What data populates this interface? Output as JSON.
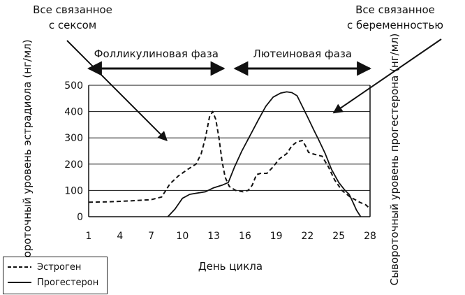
{
  "chart_data": {
    "type": "line",
    "xlabel": "День цикла",
    "ylabel_left": "Сывороточный уровень эстрадиола (нг/мл)",
    "ylabel_right": "Сывороточный уровень прогестерона (нг/мл)",
    "x_ticks": [
      1,
      4,
      7,
      10,
      13,
      16,
      19,
      22,
      25,
      28
    ],
    "y_ticks": [
      0,
      100,
      200,
      300,
      400,
      500
    ],
    "xlim": [
      1,
      28
    ],
    "ylim": [
      0,
      500
    ],
    "grid": "horizontal",
    "legend_position": "bottom-left",
    "phases": [
      {
        "label": "Фолликулиновая фаза",
        "x_start": 1,
        "x_end": 14.5
      },
      {
        "label": "Лютеиновая фаза",
        "x_start": 14.5,
        "x_end": 28
      }
    ],
    "annotations": [
      {
        "text_lines": [
          "Все связанное",
          "с сексом"
        ],
        "position": "top-left",
        "arrow_to": [
          8.5,
          290
        ]
      },
      {
        "text_lines": [
          "Все связанное",
          "с беременностью"
        ],
        "position": "top-right",
        "arrow_to": [
          24.5,
          395
        ]
      }
    ],
    "series": [
      {
        "name": "Эстроген",
        "style": "dashed",
        "points": [
          [
            1,
            55
          ],
          [
            3,
            57
          ],
          [
            5,
            60
          ],
          [
            7,
            65
          ],
          [
            8,
            75
          ],
          [
            8.8,
            125
          ],
          [
            9.6,
            155
          ],
          [
            10.5,
            180
          ],
          [
            11.3,
            200
          ],
          [
            11.8,
            240
          ],
          [
            12.2,
            300
          ],
          [
            12.6,
            380
          ],
          [
            12.9,
            400
          ],
          [
            13.2,
            370
          ],
          [
            13.5,
            300
          ],
          [
            13.8,
            210
          ],
          [
            14.1,
            150
          ],
          [
            14.5,
            115
          ],
          [
            15.1,
            100
          ],
          [
            15.8,
            95
          ],
          [
            16.3,
            100
          ],
          [
            16.7,
            120
          ],
          [
            17.1,
            160
          ],
          [
            17.5,
            165
          ],
          [
            18.1,
            165
          ],
          [
            18.7,
            190
          ],
          [
            19.3,
            220
          ],
          [
            20,
            240
          ],
          [
            20.5,
            270
          ],
          [
            21,
            285
          ],
          [
            21.5,
            290
          ],
          [
            21.8,
            270
          ],
          [
            22.1,
            245
          ],
          [
            22.6,
            238
          ],
          [
            23.4,
            230
          ],
          [
            24,
            190
          ],
          [
            24.6,
            140
          ],
          [
            25.3,
            100
          ],
          [
            26.1,
            75
          ],
          [
            27,
            55
          ],
          [
            27.6,
            45
          ],
          [
            28,
            30
          ]
        ]
      },
      {
        "name": "Прогестерон",
        "style": "solid",
        "points": [
          [
            8.6,
            0
          ],
          [
            9.3,
            30
          ],
          [
            10,
            70
          ],
          [
            10.7,
            85
          ],
          [
            11.4,
            90
          ],
          [
            12.2,
            95
          ],
          [
            13,
            110
          ],
          [
            13.8,
            120
          ],
          [
            14.4,
            130
          ],
          [
            15,
            190
          ],
          [
            15.7,
            250
          ],
          [
            16.5,
            310
          ],
          [
            17.3,
            370
          ],
          [
            18,
            420
          ],
          [
            18.7,
            455
          ],
          [
            19.4,
            470
          ],
          [
            20,
            475
          ],
          [
            20.5,
            472
          ],
          [
            21,
            460
          ],
          [
            21.5,
            420
          ],
          [
            22,
            380
          ],
          [
            22.6,
            330
          ],
          [
            23.1,
            290
          ],
          [
            23.7,
            240
          ],
          [
            24.3,
            180
          ],
          [
            25,
            130
          ],
          [
            25.6,
            100
          ],
          [
            26,
            85
          ],
          [
            26.3,
            60
          ],
          [
            26.7,
            25
          ],
          [
            27.1,
            0
          ]
        ]
      }
    ]
  }
}
